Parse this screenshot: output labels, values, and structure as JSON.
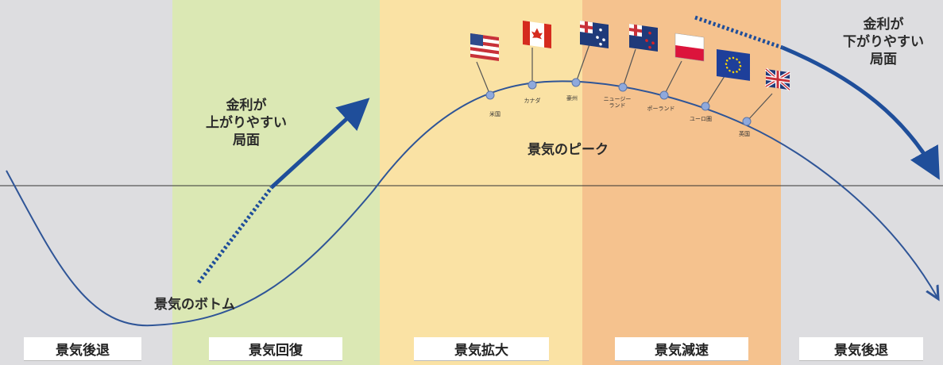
{
  "phases": [
    {
      "label": "景気後退",
      "color": "#dddde0"
    },
    {
      "label": "景気回復",
      "color": "#dbe8b4"
    },
    {
      "label": "景気拡大",
      "color": "#fae2a4"
    },
    {
      "label": "景気減速",
      "color": "#f5c28e"
    },
    {
      "label": "景気後退",
      "color": "#dddde0"
    }
  ],
  "annotations": {
    "rates_up": "金利が\n上がりやすい\n局面",
    "rates_down": "金利が\n下がりやすい\n局面",
    "peak": "景気のピーク",
    "bottom": "景気のボトム"
  },
  "peak_points": [
    {
      "label": "米国",
      "flag": "us-flag-icon"
    },
    {
      "label": "カナダ",
      "flag": "canada-flag-icon"
    },
    {
      "label": "豪州",
      "flag": "australia-flag-icon"
    },
    {
      "label": "ニュージー\nランド",
      "flag": "new-zealand-flag-icon"
    },
    {
      "label": "ポーランド",
      "flag": "poland-flag-icon"
    },
    {
      "label": "ユーロ圏",
      "flag": "eu-flag-icon"
    },
    {
      "label": "英国",
      "flag": "uk-flag-icon"
    }
  ],
  "colors": {
    "curve": "#2f5597",
    "arrow": "#1f4e9a",
    "point": "#8fa9dc"
  }
}
